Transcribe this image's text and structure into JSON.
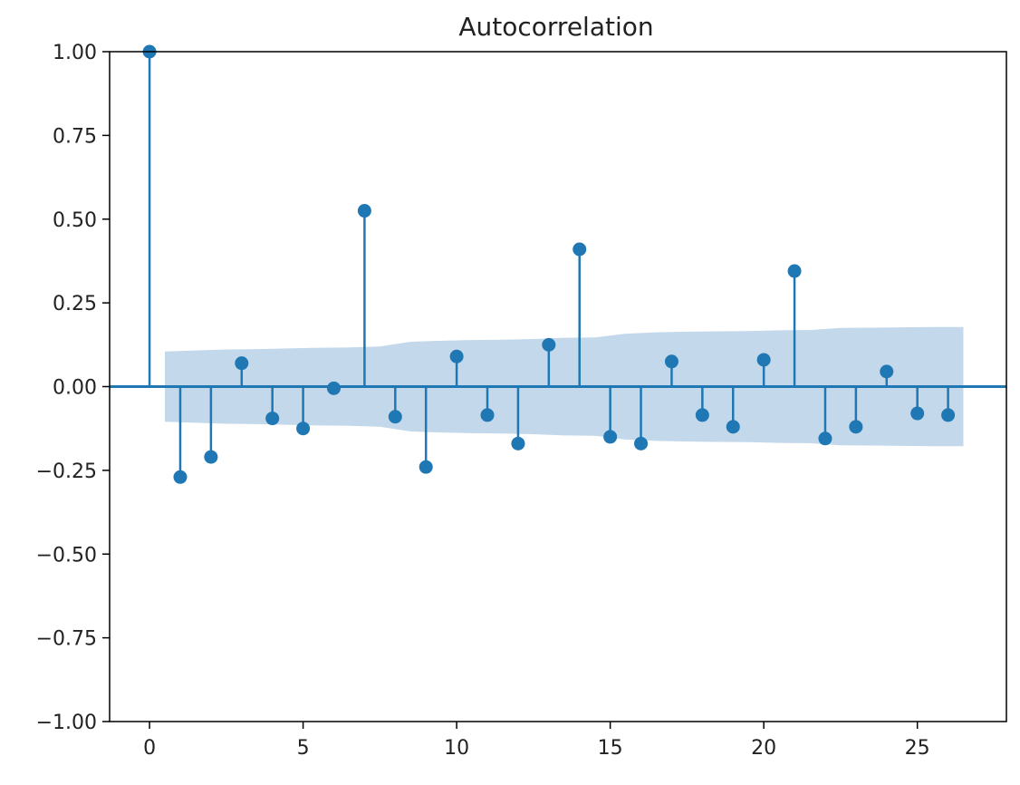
{
  "chart_data": {
    "type": "stem",
    "title": "Autocorrelation",
    "xlabel": "",
    "ylabel": "",
    "xlim": [
      -1.3,
      27.9
    ],
    "ylim": [
      -1.0,
      1.0
    ],
    "x_ticks": [
      0,
      5,
      10,
      15,
      20,
      25
    ],
    "x_tick_labels": [
      "0",
      "5",
      "10",
      "15",
      "20",
      "25"
    ],
    "y_ticks": [
      1.0,
      0.75,
      0.5,
      0.25,
      0.0,
      -0.25,
      -0.5,
      -0.75,
      -1.0
    ],
    "y_tick_labels": [
      "1.00",
      "0.75",
      "0.50",
      "0.25",
      "0.00",
      "−0.25",
      "−0.50",
      "−0.75",
      "−1.00"
    ],
    "grid": false,
    "series": [
      {
        "x": [
          0,
          1,
          2,
          3,
          4,
          5,
          6,
          7,
          8,
          9,
          10,
          11,
          12,
          13,
          14,
          15,
          16,
          17,
          18,
          19,
          20,
          21,
          22,
          23,
          24,
          25,
          26
        ],
        "values": [
          1.0,
          -0.27,
          -0.21,
          0.07,
          -0.095,
          -0.125,
          -0.005,
          0.525,
          -0.09,
          -0.24,
          0.09,
          -0.085,
          -0.17,
          0.125,
          0.41,
          -0.15,
          -0.17,
          0.075,
          -0.085,
          -0.12,
          0.08,
          0.345,
          -0.155,
          -0.12,
          0.045,
          -0.08,
          -0.085
        ]
      }
    ],
    "confidence_band": {
      "x": [
        0.5,
        1.5,
        2.5,
        3.5,
        4.5,
        5.5,
        6.5,
        7.5,
        8.5,
        9.5,
        10.5,
        11.5,
        12.5,
        13.5,
        14.5,
        15.5,
        16.5,
        17.5,
        18.5,
        19.5,
        20.5,
        21.5,
        22.5,
        23.5,
        24.5,
        25.5,
        26.5
      ],
      "upper": [
        0.105,
        0.108,
        0.111,
        0.112,
        0.114,
        0.116,
        0.117,
        0.12,
        0.134,
        0.137,
        0.139,
        0.14,
        0.142,
        0.146,
        0.147,
        0.158,
        0.162,
        0.164,
        0.165,
        0.166,
        0.168,
        0.169,
        0.175,
        0.176,
        0.177,
        0.178,
        0.178
      ],
      "lower": [
        -0.105,
        -0.108,
        -0.111,
        -0.112,
        -0.114,
        -0.116,
        -0.117,
        -0.12,
        -0.134,
        -0.137,
        -0.139,
        -0.14,
        -0.142,
        -0.146,
        -0.147,
        -0.158,
        -0.162,
        -0.164,
        -0.165,
        -0.166,
        -0.168,
        -0.169,
        -0.175,
        -0.176,
        -0.177,
        -0.178,
        -0.178
      ]
    },
    "colors": {
      "stem": "#1f77b4",
      "band": "#c3d8eb",
      "axis": "#000000",
      "text": "#222222"
    }
  }
}
